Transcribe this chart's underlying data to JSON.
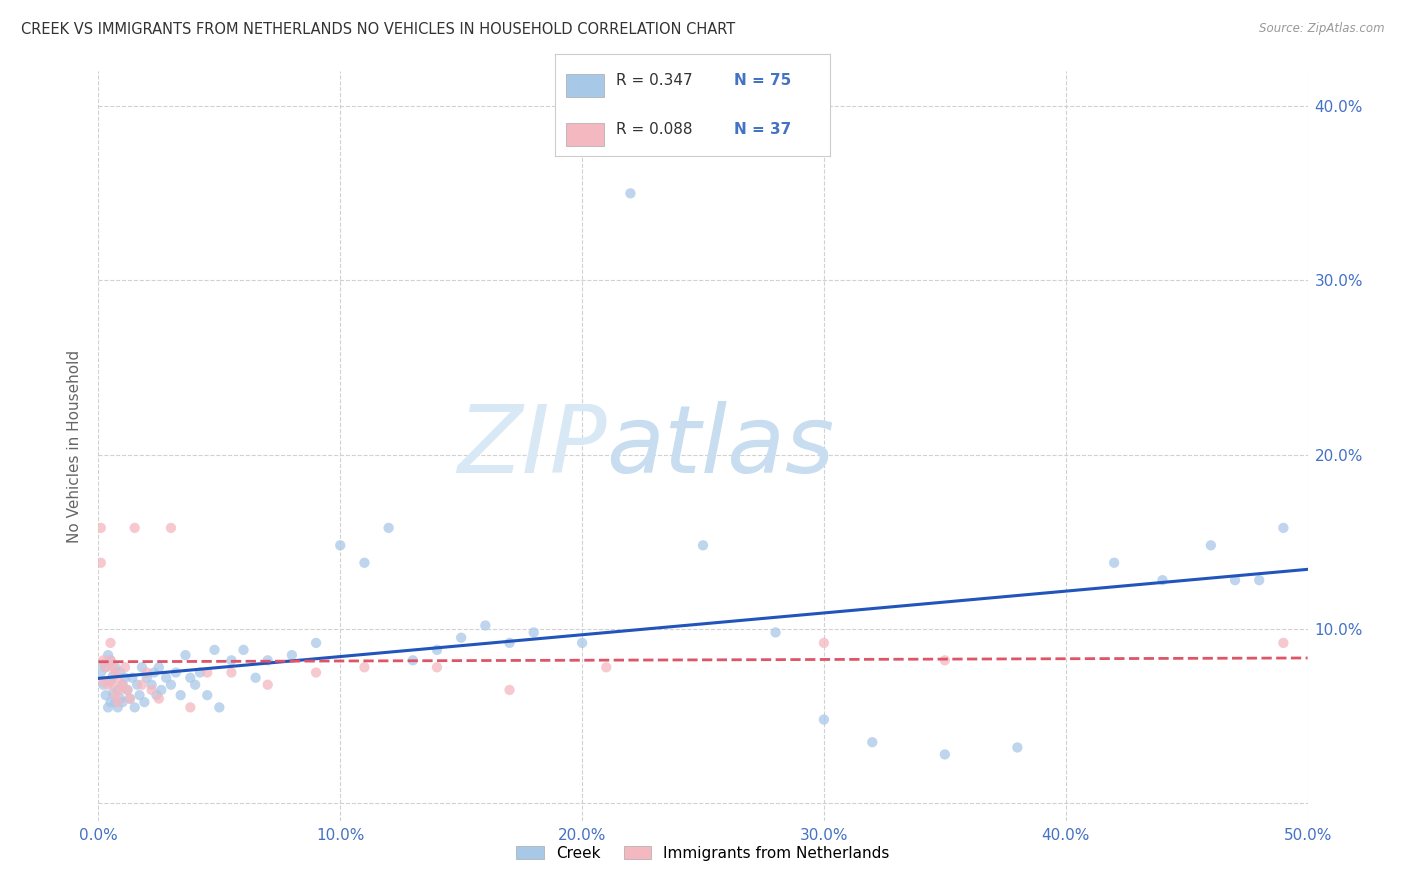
{
  "title": "CREEK VS IMMIGRANTS FROM NETHERLANDS NO VEHICLES IN HOUSEHOLD CORRELATION CHART",
  "source": "Source: ZipAtlas.com",
  "ylabel": "No Vehicles in Household",
  "xlim": [
    0.0,
    0.5
  ],
  "ylim": [
    -0.01,
    0.42
  ],
  "xticks": [
    0.0,
    0.1,
    0.2,
    0.3,
    0.4,
    0.5
  ],
  "yticks": [
    0.0,
    0.1,
    0.2,
    0.3,
    0.4
  ],
  "xtick_labels": [
    "0.0%",
    "10.0%",
    "20.0%",
    "30.0%",
    "40.0%",
    "50.0%"
  ],
  "ytick_labels": [
    "",
    "10.0%",
    "20.0%",
    "30.0%",
    "40.0%"
  ],
  "creek_color": "#a8c8e8",
  "netherlands_color": "#f4b8c0",
  "creek_line_color": "#2255bb",
  "netherlands_line_color": "#dd5566",
  "R_creek": 0.347,
  "N_creek": 75,
  "R_netherlands": 0.088,
  "N_netherlands": 37,
  "creek_x": [
    0.001,
    0.002,
    0.002,
    0.003,
    0.003,
    0.004,
    0.004,
    0.005,
    0.005,
    0.005,
    0.006,
    0.006,
    0.007,
    0.007,
    0.008,
    0.008,
    0.009,
    0.009,
    0.01,
    0.01,
    0.011,
    0.012,
    0.013,
    0.014,
    0.015,
    0.016,
    0.017,
    0.018,
    0.019,
    0.02,
    0.022,
    0.023,
    0.024,
    0.025,
    0.026,
    0.028,
    0.03,
    0.032,
    0.034,
    0.036,
    0.038,
    0.04,
    0.042,
    0.045,
    0.048,
    0.05,
    0.055,
    0.06,
    0.065,
    0.07,
    0.08,
    0.09,
    0.1,
    0.11,
    0.12,
    0.13,
    0.14,
    0.15,
    0.16,
    0.17,
    0.18,
    0.2,
    0.22,
    0.25,
    0.28,
    0.3,
    0.32,
    0.35,
    0.38,
    0.42,
    0.44,
    0.46,
    0.47,
    0.48,
    0.49
  ],
  "creek_y": [
    0.075,
    0.068,
    0.08,
    0.062,
    0.078,
    0.055,
    0.085,
    0.058,
    0.07,
    0.082,
    0.063,
    0.073,
    0.058,
    0.078,
    0.055,
    0.065,
    0.06,
    0.075,
    0.058,
    0.068,
    0.072,
    0.065,
    0.06,
    0.072,
    0.055,
    0.068,
    0.062,
    0.078,
    0.058,
    0.072,
    0.068,
    0.075,
    0.062,
    0.078,
    0.065,
    0.072,
    0.068,
    0.075,
    0.062,
    0.085,
    0.072,
    0.068,
    0.075,
    0.062,
    0.088,
    0.055,
    0.082,
    0.088,
    0.072,
    0.082,
    0.085,
    0.092,
    0.148,
    0.138,
    0.158,
    0.082,
    0.088,
    0.095,
    0.102,
    0.092,
    0.098,
    0.092,
    0.35,
    0.148,
    0.098,
    0.048,
    0.035,
    0.028,
    0.032,
    0.138,
    0.128,
    0.148,
    0.128,
    0.128,
    0.158
  ],
  "netherlands_x": [
    0.001,
    0.001,
    0.002,
    0.002,
    0.003,
    0.004,
    0.005,
    0.005,
    0.006,
    0.006,
    0.007,
    0.007,
    0.008,
    0.008,
    0.009,
    0.01,
    0.011,
    0.012,
    0.013,
    0.015,
    0.018,
    0.02,
    0.022,
    0.025,
    0.03,
    0.038,
    0.045,
    0.055,
    0.07,
    0.09,
    0.11,
    0.14,
    0.17,
    0.21,
    0.3,
    0.35,
    0.49
  ],
  "netherlands_y": [
    0.158,
    0.138,
    0.07,
    0.082,
    0.078,
    0.068,
    0.082,
    0.092,
    0.078,
    0.068,
    0.062,
    0.075,
    0.058,
    0.072,
    0.065,
    0.068,
    0.078,
    0.065,
    0.06,
    0.158,
    0.068,
    0.075,
    0.065,
    0.06,
    0.158,
    0.055,
    0.075,
    0.075,
    0.068,
    0.075,
    0.078,
    0.078,
    0.065,
    0.078,
    0.092,
    0.082,
    0.092
  ],
  "background_color": "#ffffff",
  "grid_color": "#cccccc",
  "title_color": "#333333",
  "axis_label_color": "#666666",
  "tick_color": "#4472c4",
  "watermark_zip_color": "#d8e8f5",
  "watermark_atlas_color": "#c8ddf0",
  "legend_creek_r": "R = 0.347",
  "legend_creek_n": "N = 75",
  "legend_neth_r": "R = 0.088",
  "legend_neth_n": "N = 37",
  "legend_creek_label": "Creek",
  "legend_neth_label": "Immigrants from Netherlands"
}
